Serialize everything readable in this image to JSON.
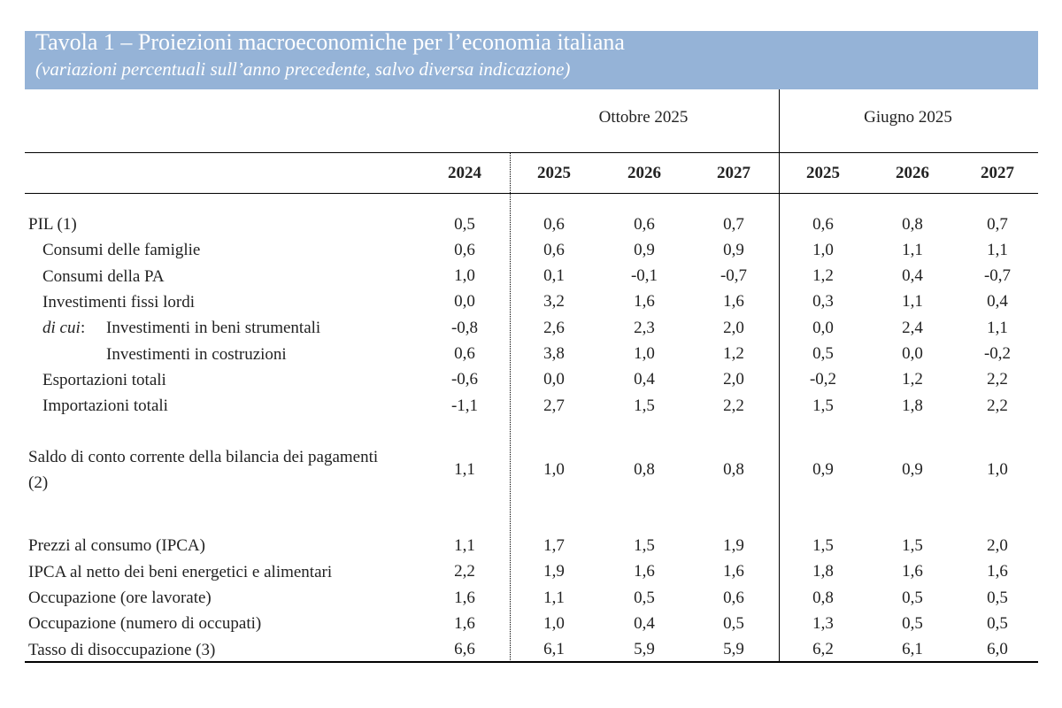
{
  "header": {
    "title": "Tavola 1 – Proiezioni macroeconomiche per l’economia italiana",
    "subtitle": "(variazioni percentuali sull’anno precedente, salvo diversa indicazione)"
  },
  "table": {
    "group_headers": [
      "Ottobre 2025",
      "Giugno 2025"
    ],
    "years": [
      "2024",
      "2025",
      "2026",
      "2027",
      "2025",
      "2026",
      "2027"
    ],
    "sections": [
      [
        {
          "label": "PIL (1)",
          "level": 0,
          "values": [
            "0,5",
            "0,6",
            "0,6",
            "0,7",
            "0,6",
            "0,8",
            "0,7"
          ]
        },
        {
          "label": "Consumi delle famiglie",
          "level": 1,
          "values": [
            "0,6",
            "0,6",
            "0,9",
            "0,9",
            "1,0",
            "1,1",
            "1,1"
          ]
        },
        {
          "label": "Consumi della PA",
          "level": 1,
          "values": [
            "1,0",
            "0,1",
            "-0,1",
            "-0,7",
            "1,2",
            "0,4",
            "-0,7"
          ]
        },
        {
          "label": "Investimenti fissi lordi",
          "level": 1,
          "values": [
            "0,0",
            "3,2",
            "1,6",
            "1,6",
            "0,3",
            "1,1",
            "0,4"
          ]
        },
        {
          "prefix": "di cui",
          "label": "Investimenti in beni strumentali",
          "level": 2,
          "values": [
            "-0,8",
            "2,6",
            "2,3",
            "2,0",
            "0,0",
            "2,4",
            "1,1"
          ]
        },
        {
          "label": "Investimenti in costruzioni",
          "level": 2,
          "values": [
            "0,6",
            "3,8",
            "1,0",
            "1,2",
            "0,5",
            "0,0",
            "-0,2"
          ]
        },
        {
          "label": "Esportazioni totali",
          "level": 1,
          "values": [
            "-0,6",
            "0,0",
            "0,4",
            "2,0",
            "-0,2",
            "1,2",
            "2,2"
          ]
        },
        {
          "label": "Importazioni totali",
          "level": 1,
          "values": [
            "-1,1",
            "2,7",
            "1,5",
            "2,2",
            "1,5",
            "1,8",
            "2,2"
          ]
        }
      ],
      [
        {
          "label": "Saldo di conto corrente della bilancia dei pagamenti (2)",
          "level": 0,
          "values": [
            "1,1",
            "1,0",
            "0,8",
            "0,8",
            "0,9",
            "0,9",
            "1,0"
          ]
        }
      ],
      [
        {
          "label": "Prezzi al consumo (IPCA)",
          "level": 0,
          "values": [
            "1,1",
            "1,7",
            "1,5",
            "1,9",
            "1,5",
            "1,5",
            "2,0"
          ]
        },
        {
          "label": "IPCA al netto dei beni energetici e alimentari",
          "level": 0,
          "values": [
            "2,2",
            "1,9",
            "1,6",
            "1,6",
            "1,8",
            "1,6",
            "1,6"
          ]
        },
        {
          "label": "Occupazione (ore lavorate)",
          "level": 0,
          "values": [
            "1,6",
            "1,1",
            "0,5",
            "0,6",
            "0,8",
            "0,5",
            "0,5"
          ]
        },
        {
          "label": "Occupazione (numero di occupati)",
          "level": 0,
          "values": [
            "1,6",
            "1,0",
            "0,4",
            "0,5",
            "1,3",
            "0,5",
            "0,5"
          ]
        },
        {
          "label": "Tasso di disoccupazione (3)",
          "level": 0,
          "values": [
            "6,6",
            "6,1",
            "5,9",
            "5,9",
            "6,2",
            "6,1",
            "6,0"
          ]
        }
      ]
    ]
  }
}
